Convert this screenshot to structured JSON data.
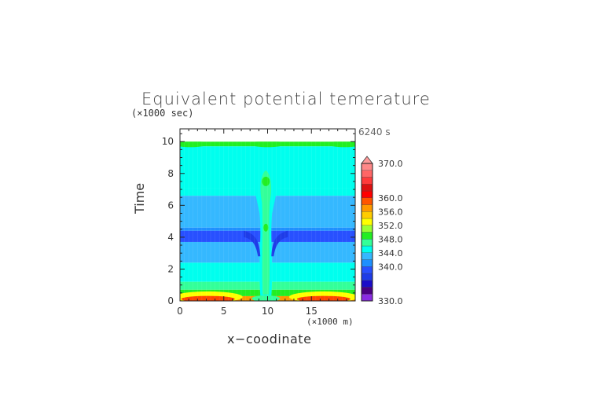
{
  "chart_data": {
    "type": "heatmap",
    "title": "Equivalent potential temerature",
    "xlabel": "x−coodinate",
    "x_unit_label": "(×1000 m)",
    "ylabel": "Time",
    "y_unit_label": "(×1000 sec)",
    "time_annotation": "6240 s",
    "xlim": [
      0,
      20
    ],
    "ylim": [
      0,
      10.8
    ],
    "x_ticks": [
      "0",
      "5",
      "10",
      "15"
    ],
    "y_ticks": [
      "0",
      "2",
      "4",
      "6",
      "8",
      "10"
    ],
    "colorbar": {
      "range": [
        330,
        370
      ],
      "tick_labels": [
        "370.0",
        "360.0",
        "356.0",
        "352.0",
        "348.0",
        "344.0",
        "340.0",
        "330.0"
      ],
      "levels": [
        {
          "value": 332,
          "color": "#8a2be2"
        },
        {
          "value": 334,
          "color": "#4b0082"
        },
        {
          "value": 336,
          "color": "#1b0cc8"
        },
        {
          "value": 338,
          "color": "#1e3ce8"
        },
        {
          "value": 340,
          "color": "#2850ff"
        },
        {
          "value": 342,
          "color": "#1e90ff"
        },
        {
          "value": 344,
          "color": "#35b8ff"
        },
        {
          "value": 346,
          "color": "#00ffee"
        },
        {
          "value": 348,
          "color": "#33ff99"
        },
        {
          "value": 350,
          "color": "#22ee22"
        },
        {
          "value": 352,
          "color": "#99ff33"
        },
        {
          "value": 354,
          "color": "#ffff00"
        },
        {
          "value": 356,
          "color": "#ffcc00"
        },
        {
          "value": 358,
          "color": "#ff9900"
        },
        {
          "value": 360,
          "color": "#ff5500"
        },
        {
          "value": 362,
          "color": "#ff0000"
        },
        {
          "value": 364,
          "color": "#dd1111"
        },
        {
          "value": 366,
          "color": "#ff3b3b"
        },
        {
          "value": 368,
          "color": "#ff6666"
        },
        {
          "value": 370,
          "color": "#ff8888"
        }
      ]
    },
    "bands": [
      {
        "t_from": 9.7,
        "t_to": 10.0,
        "value": 349,
        "note": "green edge band"
      },
      {
        "t_from": 7.1,
        "t_to": 9.7,
        "value": 345.5,
        "note": "cyan"
      },
      {
        "t_from": 6.6,
        "t_to": 7.1,
        "value": 344.5
      },
      {
        "t_from": 4.6,
        "t_to": 6.6,
        "value": 343
      },
      {
        "t_from": 4.4,
        "t_to": 4.6,
        "value": 342
      },
      {
        "t_from": 3.7,
        "t_to": 4.4,
        "value": 339,
        "note": "dark blue"
      },
      {
        "t_from": 2.4,
        "t_to": 3.7,
        "value": 343
      },
      {
        "t_from": 1.2,
        "t_to": 2.4,
        "value": 345.5
      },
      {
        "t_from": 0.7,
        "t_to": 1.2,
        "value": 346.5
      },
      {
        "t_from": 0.3,
        "t_to": 0.7,
        "value": 349
      },
      {
        "t_from": 0.0,
        "t_to": 0.3,
        "value": 358
      }
    ]
  }
}
